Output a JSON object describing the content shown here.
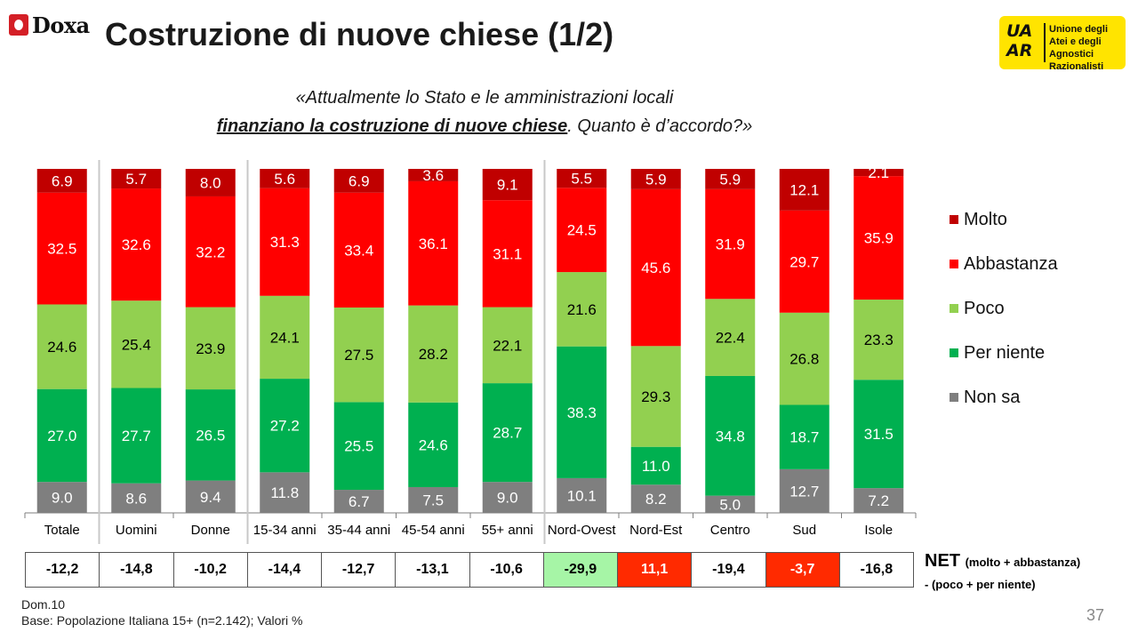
{
  "brand_left": "Doxa",
  "title": "Costruzione di nuove chiese (1/2)",
  "brand_right": {
    "mark": "UA AR",
    "name": "Unione degli Atei e degli Agnostici Razionalisti"
  },
  "question": {
    "line1": "«Attualmente lo Stato e le amministrazioni locali",
    "line2_emph": "finanziano la costruzione di nuove chiese",
    "line2_rest": ". Quanto è d’accordo?»"
  },
  "chart_data": {
    "type": "bar",
    "stacked": true,
    "categories": [
      "Totale",
      "Uomini",
      "Donne",
      "15-34 anni",
      "35-44 anni",
      "45-54 anni",
      "55+ anni",
      "Nord-Ovest",
      "Nord-Est",
      "Centro",
      "Sud",
      "Isole"
    ],
    "series": [
      {
        "name": "Non sa",
        "color": "#7f7f7f",
        "values": [
          9.0,
          8.6,
          9.4,
          11.8,
          6.7,
          7.5,
          9.0,
          10.1,
          8.2,
          5.0,
          12.7,
          7.2
        ]
      },
      {
        "name": "Per niente",
        "color": "#00b050",
        "values": [
          27.0,
          27.7,
          26.5,
          27.2,
          25.5,
          24.6,
          28.7,
          38.3,
          11.0,
          34.8,
          18.7,
          31.5
        ]
      },
      {
        "name": "Poco",
        "color": "#92d050",
        "values": [
          24.6,
          25.4,
          23.9,
          24.1,
          27.5,
          28.2,
          22.1,
          21.6,
          29.3,
          22.4,
          26.8,
          23.3
        ]
      },
      {
        "name": "Abbastanza",
        "color": "#ff0000",
        "values": [
          32.5,
          32.6,
          32.2,
          31.3,
          33.4,
          36.1,
          31.1,
          24.5,
          45.6,
          31.9,
          29.7,
          35.9
        ]
      },
      {
        "name": "Molto",
        "color": "#c00000",
        "values": [
          6.9,
          5.7,
          8.0,
          5.6,
          6.9,
          3.6,
          9.1,
          5.5,
          5.9,
          5.9,
          12.1,
          2.1
        ]
      }
    ],
    "legend_order": [
      "Molto",
      "Abbastanza",
      "Poco",
      "Per niente",
      "Non sa"
    ],
    "legend_position": "right",
    "ylim": [
      0,
      100
    ],
    "group_separators_after": [
      "Totale",
      "Donne",
      "55+ anni"
    ],
    "grid": false
  },
  "net": {
    "label": "NET",
    "label_detail": "(molto + abbastanza)",
    "sub": "- (poco + per niente)",
    "values": [
      "-12,2",
      "-14,8",
      "-10,2",
      "-14,4",
      "-12,7",
      "-13,1",
      "-10,6",
      "-29,9",
      "11,1",
      "-19,4",
      "-3,7",
      "-16,8"
    ],
    "highlight": {
      "Nord-Ovest": "#a6f5a6",
      "Nord-Est": "#ff2a00",
      "Sud": "#ff2a00"
    }
  },
  "footnote": {
    "code": "Dom.10",
    "base": "Base: Popolazione Italiana 15+ (n=2.142); Valori %"
  },
  "page_number": "37"
}
